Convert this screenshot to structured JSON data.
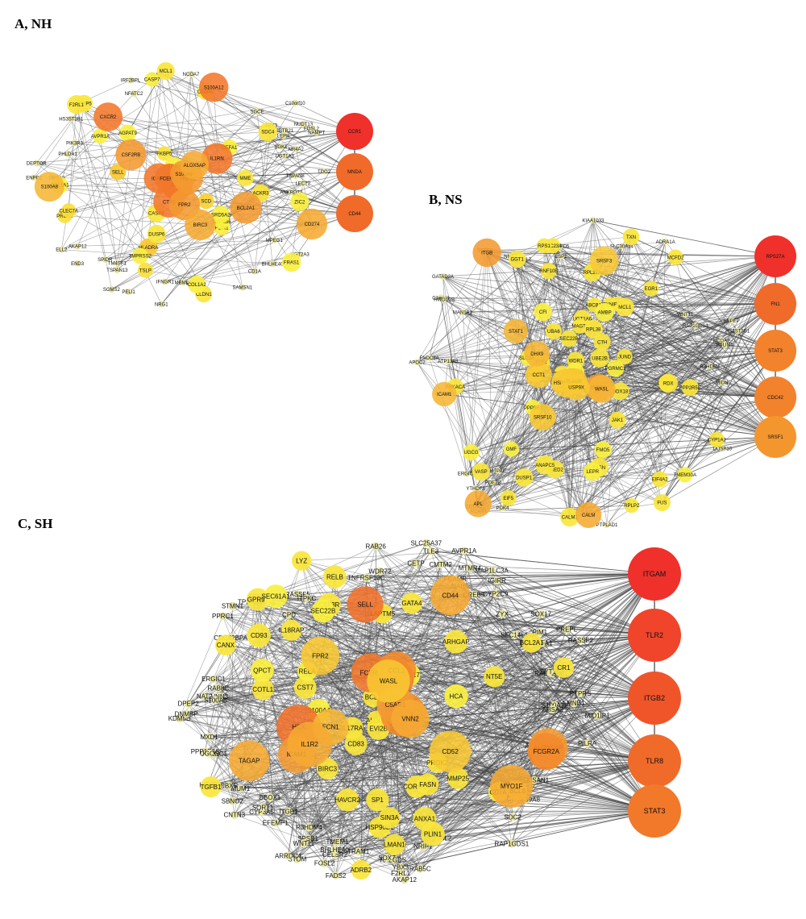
{
  "panels": [
    {
      "label": "A, NH",
      "hubs": [
        {
          "name": "CCR1",
          "color": "#f0302a"
        },
        {
          "name": "MNDA",
          "color": "#f06a2a"
        },
        {
          "name": "CD44",
          "color": "#f06a2a"
        }
      ],
      "big": [
        {
          "name": "ICAM1",
          "color": "#f2782a"
        },
        {
          "name": "CXCR2",
          "color": "#f2782a"
        },
        {
          "name": "CL20",
          "color": "#f06a2a"
        },
        {
          "name": "S100A12",
          "color": "#f2782a"
        },
        {
          "name": "FCER1G",
          "color": "#f2782a"
        },
        {
          "name": "IL1RN",
          "color": "#f2782a"
        },
        {
          "name": "CTSS",
          "color": "#f2782a"
        },
        {
          "name": "CSF2RB",
          "color": "#f49a30"
        },
        {
          "name": "TREM1",
          "color": "#f49a30"
        },
        {
          "name": "FPR2",
          "color": "#f49a30"
        },
        {
          "name": "BCL2A1",
          "color": "#f49a30"
        },
        {
          "name": "BIRC3",
          "color": "#f6aa32"
        },
        {
          "name": "CD274",
          "color": "#f6aa32"
        },
        {
          "name": "S100A9",
          "color": "#f49a30"
        },
        {
          "name": "S100A8",
          "color": "#f6b634"
        },
        {
          "name": "ALOX5AP",
          "color": "#f6aa32"
        }
      ],
      "mid": [
        {
          "name": "HLADRA",
          "color": "#f8c832"
        },
        {
          "name": "SELL",
          "color": "#f8c832"
        },
        {
          "name": "TSLP",
          "color": "#fadf3a"
        },
        {
          "name": "PROK2",
          "color": "#fadf3a"
        },
        {
          "name": "ACKR3",
          "color": "#fadf3a"
        },
        {
          "name": "CLEC7A",
          "color": "#fadf3a"
        },
        {
          "name": "SRGN",
          "color": "#fadf3a"
        },
        {
          "name": "MCL1",
          "color": "#fae63c"
        },
        {
          "name": "CASP4",
          "color": "#fae63c"
        },
        {
          "name": "MME",
          "color": "#fae63c"
        },
        {
          "name": "SCD",
          "color": "#f8d236"
        },
        {
          "name": "CEBPD",
          "color": "#fae63c"
        },
        {
          "name": "CEBPA",
          "color": "#fae63c"
        },
        {
          "name": "FKBP5",
          "color": "#fae63c"
        },
        {
          "name": "SDC4",
          "color": "#fae63c"
        },
        {
          "name": "CLDN1",
          "color": "#fae63c"
        },
        {
          "name": "DUSP6",
          "color": "#fae63c"
        },
        {
          "name": "FABP5",
          "color": "#fae63c"
        },
        {
          "name": "F2RL1",
          "color": "#fae63c"
        },
        {
          "name": "COL1A2",
          "color": "#faf040"
        },
        {
          "name": "COL1A1",
          "color": "#faf040"
        },
        {
          "name": "CASP7",
          "color": "#faf040"
        },
        {
          "name": "PLIN1",
          "color": "#faf040"
        },
        {
          "name": "RIPK4",
          "color": "#faf040"
        },
        {
          "name": "AVPR1A",
          "color": "#faf040"
        },
        {
          "name": "CYP2B6",
          "color": "#faf040"
        },
        {
          "name": "SRD5A2",
          "color": "#faf040"
        },
        {
          "name": "TMPRSS2",
          "color": "#faf040"
        },
        {
          "name": "DEFA1",
          "color": "#faf040"
        },
        {
          "name": "FRAS1",
          "color": "#faf040"
        },
        {
          "name": "ZIC2",
          "color": "#faf040"
        },
        {
          "name": "AGPAT9",
          "color": "#faf040"
        }
      ],
      "small": [
        "UGT2A3",
        "UGT1A3",
        "ANKRD37",
        "NCOA7",
        "NUDT13",
        "TSPAN13",
        "NRG1",
        "TSPAN8",
        "TM4SF1",
        "IFNGR1",
        "SGCE",
        "LEPR",
        "NAMPT",
        "PELI1",
        "PEG10",
        "ZBTB21",
        "TDO2",
        "SGK1",
        "FOSL2",
        "SPIDR",
        "IRF2BPL",
        "MBML2",
        "LECT2",
        "DEPTOR",
        "HS3ST3B1",
        "END3",
        "SGMS2",
        "BHLHE40",
        "ARNTL2",
        "SAMSN1",
        "NR4A2",
        "ATF1",
        "MPEG1",
        "PHLDA1",
        "CD1A",
        "HPGD",
        "PIK3R3",
        "PLEKHA7",
        "AKAP12",
        "TBX3",
        "ELL2",
        "C10orf10",
        "ENPP2",
        "NFATC2"
      ]
    },
    {
      "label": "B, NS",
      "hubs": [
        {
          "name": "RPS27A",
          "color": "#f0302a"
        },
        {
          "name": "FN1",
          "color": "#f06a2a"
        },
        {
          "name": "STAT3",
          "color": "#f2822c"
        },
        {
          "name": "CDC42",
          "color": "#f2822c"
        },
        {
          "name": "SRSF1",
          "color": "#f4962e"
        }
      ],
      "big": [
        {
          "name": "ITGB",
          "color": "#f49a30"
        },
        {
          "name": "BRBB2",
          "color": "#f49a30"
        },
        {
          "name": "APL",
          "color": "#f6aa32"
        },
        {
          "name": "CALM",
          "color": "#f6aa32"
        },
        {
          "name": "CANX",
          "color": "#f6b634"
        },
        {
          "name": "WASL",
          "color": "#f6b634"
        },
        {
          "name": "STAT1",
          "color": "#f6b634"
        },
        {
          "name": "ICAM1",
          "color": "#f6b634"
        },
        {
          "name": "HSP90AB1",
          "color": "#f8c832"
        },
        {
          "name": "PLAUR",
          "color": "#f8c832"
        },
        {
          "name": "CCT1",
          "color": "#f8c832"
        },
        {
          "name": "USP9X",
          "color": "#f8c832"
        },
        {
          "name": "SRSF3",
          "color": "#f8c832"
        },
        {
          "name": "SRSF10",
          "color": "#f8c832"
        },
        {
          "name": "DHX9",
          "color": "#f6b634"
        }
      ],
      "mid": [
        {
          "name": "CYP1A2",
          "color": "#fae63c"
        },
        {
          "name": "UGT1A6",
          "color": "#fae63c"
        },
        {
          "name": "CYP2C8",
          "color": "#fae63c"
        },
        {
          "name": "CYP2C9",
          "color": "#fae63c"
        },
        {
          "name": "UGT1A8",
          "color": "#fae63c"
        },
        {
          "name": "ABCB11",
          "color": "#fae63c"
        },
        {
          "name": "FMO5",
          "color": "#faf040"
        },
        {
          "name": "GMF",
          "color": "#faf040"
        },
        {
          "name": "PGRMC1",
          "color": "#faf040"
        },
        {
          "name": "SLC2A5",
          "color": "#faf040"
        },
        {
          "name": "TMEM30A",
          "color": "#faf040"
        },
        {
          "name": "MCFD2",
          "color": "#fae63c"
        },
        {
          "name": "MAGT1",
          "color": "#fae63c"
        },
        {
          "name": "SEC22B",
          "color": "#fae63c"
        },
        {
          "name": "TMED2",
          "color": "#fae63c"
        },
        {
          "name": "SEC23A",
          "color": "#fae63c"
        },
        {
          "name": "TRAM1",
          "color": "#fae63c"
        },
        {
          "name": "RPLP2",
          "color": "#fae63c"
        },
        {
          "name": "RPL27A",
          "color": "#fae63c"
        },
        {
          "name": "RPL38",
          "color": "#fae63c"
        },
        {
          "name": "EIF5",
          "color": "#fae63c"
        },
        {
          "name": "EIF4A2",
          "color": "#fae63c"
        },
        {
          "name": "DDX18",
          "color": "#fae63c"
        },
        {
          "name": "RPS1",
          "color": "#fae63c"
        },
        {
          "name": "SET",
          "color": "#fae63c"
        },
        {
          "name": "FUS",
          "color": "#fae63c"
        },
        {
          "name": "UBA6",
          "color": "#fae63c"
        },
        {
          "name": "UBE2B",
          "color": "#fae63c"
        },
        {
          "name": "WDR1",
          "color": "#fae63c"
        },
        {
          "name": "CTH",
          "color": "#fae63c"
        },
        {
          "name": "RDX",
          "color": "#fae63c"
        },
        {
          "name": "GGT1",
          "color": "#fae63c"
        },
        {
          "name": "TXN",
          "color": "#fae63c"
        },
        {
          "name": "JAK1",
          "color": "#fae63c"
        },
        {
          "name": "VASP",
          "color": "#fae63c"
        },
        {
          "name": "TXNIP",
          "color": "#fae63c"
        },
        {
          "name": "TGFB1",
          "color": "#fae63c"
        },
        {
          "name": "MCL1",
          "color": "#fae63c"
        },
        {
          "name": "CALM1",
          "color": "#fae63c"
        },
        {
          "name": "FASN",
          "color": "#fae63c"
        },
        {
          "name": "EGR1",
          "color": "#fae63c"
        },
        {
          "name": "DUSP1",
          "color": "#fae63c"
        },
        {
          "name": "PRKACA",
          "color": "#fae63c"
        },
        {
          "name": "PPP2R5E",
          "color": "#fae63c"
        },
        {
          "name": "RNF10B",
          "color": "#fae63c"
        },
        {
          "name": "JUND",
          "color": "#fae63c"
        },
        {
          "name": "ANAPC5",
          "color": "#fae63c"
        },
        {
          "name": "KLF2",
          "color": "#fae63c"
        },
        {
          "name": "LEPR",
          "color": "#faf040"
        },
        {
          "name": "CFI",
          "color": "#faf040"
        },
        {
          "name": "PPM1A",
          "color": "#faf040"
        },
        {
          "name": "AMBP",
          "color": "#faf040"
        },
        {
          "name": "UGCG",
          "color": "#faf040"
        },
        {
          "name": "PPP3R1",
          "color": "#faf040"
        }
      ],
      "small": [
        "ADRA1A",
        "WNT11",
        "SGPP1",
        "APOC2",
        "HS3ST3B1",
        "ENPEP",
        "LSP1",
        "ENTPD5",
        "NME7",
        "DUSP10",
        "PDE3B",
        "PDK4",
        "ELOVL2",
        "PTPLAD1",
        "RCAN1",
        "NCOA2",
        "GATAD2A",
        "MTPAP",
        "C1orf43",
        "PDLIM5",
        "RAP1GDS1",
        "RWDD2B",
        "MIDN",
        "R3HDM4",
        "FNDC3A",
        "SLC30A14",
        "KIAA1033",
        "CD164",
        "ERGIC1",
        "MAN1A1",
        "SCYL2",
        "ATP13A3",
        "YTHDF3"
      ]
    },
    {
      "label": "C, SH",
      "hubs": [
        {
          "name": "ITGAM",
          "color": "#f0302a"
        },
        {
          "name": "TLR2",
          "color": "#f0452a"
        },
        {
          "name": "ITGB2",
          "color": "#f0552a"
        },
        {
          "name": "TLR8",
          "color": "#f06a2a"
        },
        {
          "name": "STAT3",
          "color": "#f2782a"
        }
      ],
      "big": [
        {
          "name": "HCK",
          "color": "#f0702a"
        },
        {
          "name": "SELL",
          "color": "#f0702a"
        },
        {
          "name": "PLEK",
          "color": "#f2782a"
        },
        {
          "name": "FCER1",
          "color": "#f2782a"
        },
        {
          "name": "TREM1",
          "color": "#f48a2c"
        },
        {
          "name": "ALOX5AP",
          "color": "#f49a30"
        },
        {
          "name": "FCGR2A",
          "color": "#f48a2c"
        },
        {
          "name": "C5AR1",
          "color": "#f49a30"
        },
        {
          "name": "FCN1",
          "color": "#f6b634"
        },
        {
          "name": "VNN2",
          "color": "#f6aa32"
        },
        {
          "name": "CCL1",
          "color": "#f48a2c"
        },
        {
          "name": "TAGAP",
          "color": "#f6aa32"
        },
        {
          "name": "CD44",
          "color": "#f6aa32"
        },
        {
          "name": "ICAM1",
          "color": "#f49a30"
        },
        {
          "name": "IL1R2",
          "color": "#f6aa32"
        },
        {
          "name": "MYO1F",
          "color": "#f6aa32"
        },
        {
          "name": "CD52",
          "color": "#f8c832"
        },
        {
          "name": "FPR2",
          "color": "#f8c832"
        },
        {
          "name": "WASL",
          "color": "#f8c832"
        }
      ],
      "mid": [
        {
          "name": "IL18RAP",
          "color": "#fae63c"
        },
        {
          "name": "PROK2",
          "color": "#fae63c"
        },
        {
          "name": "LYZ",
          "color": "#fae63c"
        },
        {
          "name": "GPR97",
          "color": "#fae63c"
        },
        {
          "name": "ANXA1",
          "color": "#fae63c"
        },
        {
          "name": "MMP25",
          "color": "#fae63c"
        },
        {
          "name": "ALDOA",
          "color": "#fae63c"
        },
        {
          "name": "LMAN1",
          "color": "#fae63c"
        },
        {
          "name": "CR1",
          "color": "#fae63c"
        },
        {
          "name": "IL17RA",
          "color": "#fae63c"
        },
        {
          "name": "TGFB1",
          "color": "#fae63c"
        },
        {
          "name": "NT5E",
          "color": "#fae63c"
        },
        {
          "name": "CANX",
          "color": "#fae63c"
        },
        {
          "name": "HSP90B1",
          "color": "#fae63c"
        },
        {
          "name": "ADRB2",
          "color": "#fae63c"
        },
        {
          "name": "CORO1A",
          "color": "#fae63c"
        },
        {
          "name": "BCL2A1",
          "color": "#fae63c"
        },
        {
          "name": "CD83",
          "color": "#fae63c"
        },
        {
          "name": "RELB",
          "color": "#fae63c"
        },
        {
          "name": "BCL6",
          "color": "#fae63c"
        },
        {
          "name": "BCL3",
          "color": "#fae63c"
        },
        {
          "name": "BIRC3",
          "color": "#fae63c"
        },
        {
          "name": "GATA4",
          "color": "#fae63c"
        },
        {
          "name": "SIN3A",
          "color": "#fae63c"
        },
        {
          "name": "SP1",
          "color": "#fae63c"
        },
        {
          "name": "FASN",
          "color": "#fae63c"
        },
        {
          "name": "PLIN1",
          "color": "#fae63c"
        },
        {
          "name": "EVI2B",
          "color": "#fae63c"
        },
        {
          "name": "ARHGAP",
          "color": "#fae63c"
        },
        {
          "name": "LAPTM5",
          "color": "#fae63c"
        },
        {
          "name": "COTL1",
          "color": "#fae63c"
        },
        {
          "name": "HAVCR2",
          "color": "#fae63c"
        },
        {
          "name": "CST7",
          "color": "#fae63c"
        },
        {
          "name": "CSF3R",
          "color": "#fae63c"
        },
        {
          "name": "CD93",
          "color": "#fae63c"
        },
        {
          "name": "QPCT",
          "color": "#faf040"
        },
        {
          "name": "HCA",
          "color": "#faf040"
        },
        {
          "name": "SEC22B",
          "color": "#faf040"
        },
        {
          "name": "SEC61A1",
          "color": "#faf040"
        },
        {
          "name": "S100A4",
          "color": "#faf040"
        },
        {
          "name": "ZNF217",
          "color": "#faf040"
        },
        {
          "name": "RELA",
          "color": "#faf040"
        },
        {
          "name": "CD7A",
          "color": "#faf040"
        }
      ],
      "small": [
        "NAT2",
        "ABCB11",
        "CMTM2",
        "DEFA1",
        "PPRC1",
        "CYP3A5",
        "CYP2C9",
        "VNN3",
        "CNTN3",
        "GCA",
        "S100A11",
        "AVPR1A",
        "SLC25A37",
        "PREPL",
        "S100A6",
        "WDR72",
        "F2RL1",
        "DPEP2",
        "SLC39A8",
        "STOM",
        "SDC2",
        "STOT",
        "PILRA",
        "ITGB1",
        "STMN1",
        "MTMR4",
        "TPSAB1",
        "EFEMP1",
        "PRKCI",
        "RAB11FIP1",
        "CDC42BPA",
        "ZFP36L2",
        "RAP1GDS1",
        "ZYX",
        "TMEM1",
        "AKAP12",
        "SORT1",
        "RALGDS",
        "CPD",
        "RAB5C",
        "CETP",
        "RAB26",
        "CELSR2",
        "PLXNC1",
        "RASSF2",
        "SBNO2",
        "LITAF",
        "TNFRSF10C",
        "MUM1",
        "SOX7",
        "CREB5",
        "BHLHE40",
        "YBX3",
        "FOSL2",
        "MXD1",
        "CBX5",
        "ELMSAN1",
        "ARRDC4",
        "MLXIP",
        "TLE3",
        "NRIP1",
        "PPP1R16",
        "MID1IP1",
        "NAB1",
        "FADS2",
        "SEC14L1",
        "ERGIC1",
        "UGCG",
        "TRAM1",
        "CD33",
        "ESD",
        "PTPRS",
        "TOB1",
        "LMNB1",
        "MAP1LC3A",
        "R3HDM4",
        "RASSF5",
        "IGIRR",
        "SPSB1",
        "CNTN3",
        "KDM5B",
        "AHSA2",
        "PIM1",
        "ITPKC",
        "DNMBP",
        "SYT11",
        "FCAMR",
        "RAB8C",
        "BBOX1",
        "WNT11",
        "SOX17"
      ]
    }
  ]
}
